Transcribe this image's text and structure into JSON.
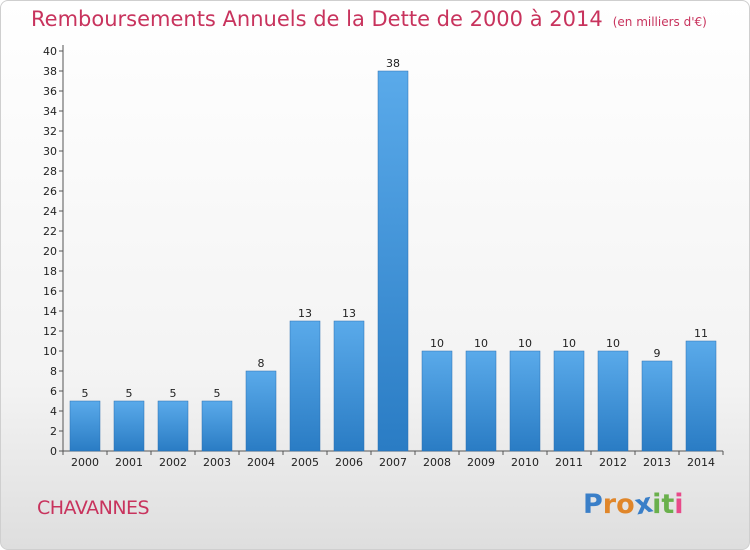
{
  "title": "Remboursements Annuels de la Dette de 2000 à 2014",
  "unit": "(en milliers d'€)",
  "city": "CHAVANNES",
  "logo": [
    "P",
    "r",
    "o",
    "x",
    "i",
    "t",
    "i"
  ],
  "colors": {
    "title": "#c8335d",
    "bar_light": "#5aaaea",
    "bar_dark": "#2a7cc4",
    "logo": [
      "#3a7fc8",
      "#e0862a",
      "#e0862a",
      "#3a7fc8",
      "#6ab04c",
      "#6ab04c",
      "#e84a8a"
    ]
  },
  "chart_data": {
    "type": "bar",
    "title": "Remboursements Annuels de la Dette de 2000 à 2014",
    "categories": [
      "2000",
      "2001",
      "2002",
      "2003",
      "2004",
      "2005",
      "2006",
      "2007",
      "2008",
      "2009",
      "2010",
      "2011",
      "2012",
      "2013",
      "2014"
    ],
    "values": [
      5,
      5,
      5,
      5,
      8,
      13,
      13,
      38,
      10,
      10,
      10,
      10,
      10,
      9,
      11
    ],
    "ylim": [
      0,
      40
    ],
    "yticks": [
      0,
      2,
      4,
      6,
      8,
      10,
      12,
      14,
      16,
      18,
      20,
      22,
      24,
      26,
      28,
      30,
      32,
      34,
      36,
      38,
      40
    ],
    "grid": false,
    "data_labels": true
  }
}
